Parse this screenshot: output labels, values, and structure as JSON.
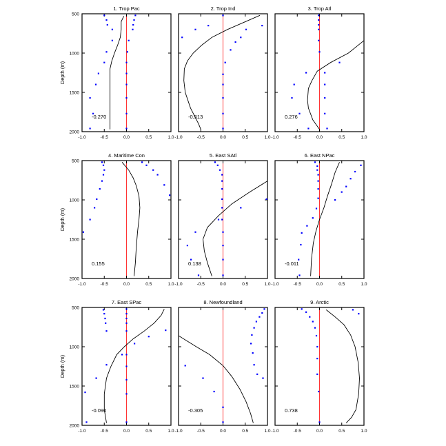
{
  "chart_data": {
    "type": "line",
    "ylabel": "Depth (m)",
    "xlim": [
      -1,
      1
    ],
    "ylim": [
      2000,
      500
    ],
    "x_ticks": [
      "-1.0",
      "-0.5",
      "0.0",
      "0.5",
      "1.0"
    ],
    "y_ticks": [
      "500",
      "1000",
      "1500",
      "2000"
    ],
    "y_tick_values": [
      500,
      1000,
      1500,
      2000
    ],
    "colors": {
      "line": "#000000",
      "dots": "#0000ff",
      "zero_line": "#ff0000"
    },
    "panels": [
      {
        "title": "1. Trop Pac",
        "value_label": "-0.270",
        "line": {
          "x": [
            -0.06,
            -0.12,
            -0.12,
            -0.14,
            -0.2,
            -0.27,
            -0.33,
            -0.37,
            -0.37,
            -0.37,
            -0.37,
            -0.37
          ],
          "depth": [
            530,
            600,
            700,
            800,
            900,
            1000,
            1100,
            1200,
            1400,
            1600,
            1800,
            1970
          ]
        },
        "dots_left": {
          "x": [
            -0.5,
            -0.45,
            -0.43,
            -0.32,
            -0.32,
            -0.45,
            -0.5,
            -0.63,
            -0.69,
            -0.82,
            -0.75,
            -0.82
          ],
          "depth": [
            520,
            580,
            640,
            700,
            840,
            985,
            1120,
            1260,
            1400,
            1570,
            1770,
            1960
          ]
        },
        "dots_right": {
          "x": [
            0.2,
            0.17,
            0.15,
            0.14,
            0.05,
            0.02,
            0.0,
            0.0,
            0.0,
            0.0,
            0.0,
            0.0
          ],
          "depth": [
            520,
            580,
            640,
            700,
            840,
            985,
            1120,
            1260,
            1400,
            1570,
            1770,
            1960
          ]
        }
      },
      {
        "title": "2. Trop Ind",
        "value_label": "-0.513",
        "line": {
          "x": [
            0.83,
            0.1,
            -0.25,
            -0.48,
            -0.67,
            -0.8,
            -0.87,
            -0.88,
            -0.85,
            -0.73,
            -0.55,
            -0.5
          ],
          "depth": [
            520,
            700,
            800,
            900,
            1000,
            1100,
            1200,
            1350,
            1500,
            1700,
            1900,
            1970
          ]
        },
        "dots_left": {
          "x": [
            -0.92,
            -0.62,
            -0.33
          ],
          "depth": [
            800,
            700,
            650
          ]
        },
        "dots_right": {
          "x": [
            0.88,
            0.52,
            0.4,
            0.28,
            0.17,
            0.05,
            0.0,
            0.0,
            0.0,
            0.0,
            0.0,
            0.0
          ],
          "depth": [
            650,
            700,
            800,
            860,
            960,
            1120,
            1270,
            1400,
            1570,
            1770,
            1960,
            520
          ]
        }
      },
      {
        "title": "3. Trop Atl",
        "value_label": "0.276",
        "line": {
          "x": [
            1.0,
            0.65,
            0.25,
            -0.05,
            -0.17,
            -0.25,
            -0.27,
            -0.25,
            -0.15,
            0.0
          ],
          "depth": [
            840,
            1000,
            1120,
            1230,
            1350,
            1450,
            1600,
            1700,
            1850,
            1970
          ]
        },
        "dots_left": {
          "x": [
            -0.3,
            -0.57,
            -0.62,
            -0.45,
            -0.25
          ],
          "depth": [
            1250,
            1400,
            1570,
            1770,
            1960
          ]
        },
        "dots_right": {
          "x": [
            -0.02,
            -0.02,
            -0.02,
            -0.02,
            -0.02,
            0.0,
            0.45,
            0.12,
            0.12,
            0.12,
            0.12,
            0.17
          ],
          "depth": [
            520,
            580,
            640,
            700,
            840,
            985,
            1120,
            1250,
            1400,
            1570,
            1770,
            1960
          ]
        }
      },
      {
        "title": "4. Maritime Con",
        "value_label": "0.155",
        "line": {
          "x": [
            -0.1,
            0.05,
            0.15,
            0.22,
            0.28,
            0.3,
            0.28,
            0.25,
            0.22,
            0.2,
            0.17
          ],
          "depth": [
            520,
            620,
            720,
            820,
            950,
            1100,
            1250,
            1400,
            1600,
            1800,
            1970
          ]
        },
        "dots_left": {
          "x": [
            -0.55,
            -0.52,
            -0.5,
            -0.52,
            -0.55,
            -0.6,
            -0.67,
            -0.72,
            -0.82,
            -0.97
          ],
          "depth": [
            520,
            560,
            620,
            680,
            760,
            860,
            990,
            1100,
            1250,
            1410
          ]
        },
        "dots_right": {
          "x": [
            0.35,
            0.45,
            0.6,
            0.7,
            0.85,
            0.97
          ],
          "depth": [
            520,
            560,
            620,
            680,
            810,
            940
          ]
        }
      },
      {
        "title": "5. East SAtl",
        "value_label": "0.138",
        "line": {
          "x": [
            1.0,
            0.6,
            0.2,
            -0.1,
            -0.35,
            -0.45,
            -0.42,
            -0.35,
            -0.25
          ],
          "depth": [
            760,
            900,
            1050,
            1200,
            1350,
            1500,
            1650,
            1800,
            1970
          ]
        },
        "dots_left": {
          "x": [
            -0.18,
            -0.12,
            -0.07,
            -0.02,
            -0.02,
            -0.02,
            -0.02,
            -0.02,
            -0.02,
            -0.1,
            -0.62,
            -0.8,
            -0.72,
            -0.55
          ],
          "depth": [
            520,
            560,
            620,
            680,
            760,
            860,
            990,
            1100,
            1250,
            1250,
            1410,
            1580,
            1760,
            1960
          ]
        },
        "dots_right": {
          "x": [
            0.98,
            0.4,
            0.0,
            0.0,
            0.0,
            0.0
          ],
          "depth": [
            990,
            1100,
            1410,
            1580,
            1760,
            1960
          ]
        }
      },
      {
        "title": "6. East NPac",
        "value_label": "-0.011",
        "line": {
          "x": [
            0.45,
            0.35,
            0.27,
            0.18,
            0.1,
            0.0,
            -0.08,
            -0.14,
            -0.18,
            -0.2
          ],
          "depth": [
            520,
            650,
            800,
            950,
            1100,
            1250,
            1400,
            1550,
            1750,
            1970
          ]
        },
        "dots_left": {
          "x": [
            -0.1,
            -0.05,
            -0.05,
            -0.03,
            -0.03,
            -0.03,
            -0.03,
            -0.07,
            -0.15,
            -0.28,
            -0.4,
            -0.42,
            -0.47,
            -0.45
          ],
          "depth": [
            520,
            570,
            620,
            680,
            760,
            860,
            980,
            1110,
            1230,
            1330,
            1420,
            1570,
            1760,
            1960
          ]
        },
        "dots_right": {
          "x": [
            0.93,
            0.8,
            0.7,
            0.6,
            0.5,
            0.35
          ],
          "depth": [
            560,
            640,
            730,
            830,
            900,
            1000
          ]
        }
      },
      {
        "title": "7. East SPac",
        "value_label": "-0.090",
        "line": {
          "x": [
            0.85,
            0.78,
            0.62,
            0.4,
            0.15,
            -0.05,
            -0.22,
            -0.35,
            -0.45,
            -0.5,
            -0.5,
            -0.45
          ],
          "depth": [
            520,
            600,
            700,
            800,
            900,
            1000,
            1100,
            1250,
            1400,
            1600,
            1800,
            1970
          ]
        },
        "dots_left": {
          "x": [
            -0.52,
            -0.5,
            -0.48,
            -0.47,
            -0.45,
            -0.1,
            -0.45,
            -0.68,
            -0.93,
            -0.9
          ],
          "depth": [
            530,
            580,
            640,
            700,
            800,
            1100,
            1230,
            1400,
            1580,
            1960
          ]
        },
        "dots_right": {
          "x": [
            0.0,
            0.0,
            0.0,
            0.0,
            0.0,
            0.18,
            0.5,
            0.88,
            0.0,
            0.0,
            0.0,
            0.0,
            0.0
          ],
          "depth": [
            520,
            580,
            640,
            700,
            800,
            960,
            870,
            790,
            1100,
            1250,
            1420,
            1600,
            1960
          ]
        }
      },
      {
        "title": "8. Newfoundland",
        "value_label": "-0.305",
        "line": {
          "x": [
            -1.0,
            -0.6,
            -0.3,
            0.0,
            0.2,
            0.38,
            0.52,
            0.62,
            0.68
          ],
          "depth": [
            860,
            1000,
            1100,
            1240,
            1380,
            1540,
            1700,
            1850,
            1970
          ]
        },
        "dots_left": {
          "x": [
            -0.85,
            -0.45,
            -0.2,
            0.0,
            0.0
          ],
          "depth": [
            1240,
            1400,
            1570,
            1770,
            1960
          ]
        },
        "dots_right": {
          "x": [
            0.93,
            0.88,
            0.82,
            0.75,
            0.7,
            0.65,
            0.63,
            0.67,
            0.7,
            0.77,
            0.9
          ],
          "depth": [
            520,
            570,
            620,
            680,
            760,
            850,
            960,
            1080,
            1230,
            1350,
            1400
          ]
        }
      },
      {
        "title": "9. Arctic",
        "value_label": "0.738",
        "line": {
          "x": [
            0.15,
            0.35,
            0.55,
            0.7,
            0.8,
            0.87,
            0.9,
            0.88,
            0.82,
            0.72,
            0.6
          ],
          "depth": [
            530,
            620,
            720,
            850,
            1000,
            1200,
            1400,
            1600,
            1800,
            1900,
            1970
          ]
        },
        "dots_left": {
          "x": [
            -0.4,
            -0.3,
            -0.22,
            -0.15,
            -0.1,
            -0.07,
            -0.05,
            -0.05,
            -0.05,
            -0.02,
            0.0
          ],
          "depth": [
            520,
            560,
            620,
            680,
            760,
            860,
            1000,
            1150,
            1350,
            1570,
            1960
          ]
        },
        "dots_right": {
          "x": [
            0.75,
            0.88
          ],
          "depth": [
            530,
            580
          ]
        }
      }
    ]
  }
}
